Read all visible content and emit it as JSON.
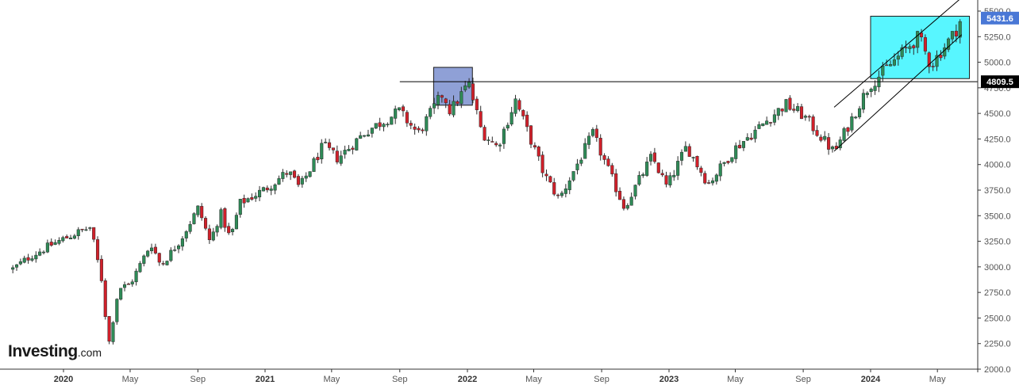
{
  "branding": {
    "logo_main": "Investing",
    "logo_suffix": ".com"
  },
  "colors": {
    "up": "#2e8b57",
    "down": "#d1202a",
    "wick": "#2b2b2b",
    "channel": "#000000",
    "resistance_line": "#000000",
    "box_2021": "#7b8fcf",
    "box_2024": "#4ff5ff",
    "current_price_tag": "#4a78d6",
    "level_tag": "#000000"
  },
  "chart_data": {
    "type": "candlestick",
    "title": "",
    "xlabel": "",
    "ylabel": "",
    "ylim": [
      2000,
      5600
    ],
    "yticks": [
      "2000.0",
      "2250.0",
      "2500.0",
      "2750.0",
      "3000.0",
      "3250.0",
      "3500.0",
      "3750.0",
      "4000.0",
      "4250.0",
      "4500.0",
      "4750.0",
      "5000.0",
      "5250.0",
      "5500.0"
    ],
    "xticks": [
      {
        "label": "2020",
        "bold": true,
        "date": "2020-01-01"
      },
      {
        "label": "May",
        "bold": false,
        "date": "2020-05-01"
      },
      {
        "label": "Sep",
        "bold": false,
        "date": "2020-09-01"
      },
      {
        "label": "2021",
        "bold": true,
        "date": "2021-01-01"
      },
      {
        "label": "May",
        "bold": false,
        "date": "2021-05-01"
      },
      {
        "label": "Sep",
        "bold": false,
        "date": "2021-09-01"
      },
      {
        "label": "2022",
        "bold": true,
        "date": "2022-01-01"
      },
      {
        "label": "May",
        "bold": false,
        "date": "2022-05-01"
      },
      {
        "label": "Sep",
        "bold": false,
        "date": "2022-09-01"
      },
      {
        "label": "2023",
        "bold": true,
        "date": "2023-01-01"
      },
      {
        "label": "May",
        "bold": false,
        "date": "2023-05-01"
      },
      {
        "label": "Sep",
        "bold": false,
        "date": "2023-09-01"
      },
      {
        "label": "2024",
        "bold": true,
        "date": "2024-01-01"
      },
      {
        "label": "May",
        "bold": false,
        "date": "2024-05-01"
      }
    ],
    "close_path": [
      [
        "2019-10-01",
        2980
      ],
      [
        "2019-11-01",
        3100
      ],
      [
        "2019-12-15",
        3230
      ],
      [
        "2020-01-20",
        3320
      ],
      [
        "2020-02-19",
        3386
      ],
      [
        "2020-03-10",
        2880
      ],
      [
        "2020-03-23",
        2237
      ],
      [
        "2020-04-10",
        2790
      ],
      [
        "2020-05-01",
        2830
      ],
      [
        "2020-06-08",
        3230
      ],
      [
        "2020-06-26",
        3010
      ],
      [
        "2020-08-01",
        3270
      ],
      [
        "2020-09-02",
        3580
      ],
      [
        "2020-09-23",
        3240
      ],
      [
        "2020-10-12",
        3530
      ],
      [
        "2020-10-30",
        3270
      ],
      [
        "2020-11-16",
        3620
      ],
      [
        "2020-12-31",
        3756
      ],
      [
        "2021-02-12",
        3934
      ],
      [
        "2021-03-04",
        3770
      ],
      [
        "2021-04-16",
        4185
      ],
      [
        "2021-05-12",
        4060
      ],
      [
        "2021-07-01",
        4320
      ],
      [
        "2021-08-31",
        4520
      ],
      [
        "2021-10-04",
        4300
      ],
      [
        "2021-11-18",
        4700
      ],
      [
        "2021-12-01",
        4520
      ],
      [
        "2022-01-03",
        4796
      ],
      [
        "2022-01-27",
        4320
      ],
      [
        "2022-02-24",
        4170
      ],
      [
        "2022-03-29",
        4630
      ],
      [
        "2022-05-20",
        3900
      ],
      [
        "2022-06-16",
        3660
      ],
      [
        "2022-08-16",
        4300
      ],
      [
        "2022-10-12",
        3580
      ],
      [
        "2022-12-01",
        4080
      ],
      [
        "2022-12-28",
        3780
      ],
      [
        "2023-02-02",
        4180
      ],
      [
        "2023-03-13",
        3810
      ],
      [
        "2023-05-01",
        4160
      ],
      [
        "2023-07-31",
        4590
      ],
      [
        "2023-09-01",
        4480
      ],
      [
        "2023-10-27",
        4117
      ],
      [
        "2023-12-29",
        4770
      ],
      [
        "2024-03-28",
        5250
      ],
      [
        "2024-04-19",
        4970
      ],
      [
        "2024-05-31",
        5280
      ],
      [
        "2024-06-14",
        5432
      ]
    ],
    "horizontal_level": {
      "value": 4809.5,
      "label": "4809.5",
      "from": "2021-09-01"
    },
    "current_price": {
      "value": 5431.6,
      "label": "5431.6"
    },
    "channel": {
      "lower": [
        [
          "2023-10-27",
          4130
        ],
        [
          "2024-06-14",
          5270
        ]
      ],
      "upper": [
        [
          "2023-10-27",
          4560
        ],
        [
          "2024-06-20",
          5660
        ]
      ]
    },
    "boxes": [
      {
        "name": "box-2021-top",
        "from": "2021-11-01",
        "to": "2022-01-10",
        "low": 4580,
        "high": 4950,
        "color": "#7b8fcf"
      },
      {
        "name": "box-2024-channel",
        "from": "2024-01-01",
        "to": "2024-06-28",
        "low": 4840,
        "high": 5450,
        "color": "#4ff5ff"
      }
    ],
    "x_range": [
      "2019-10-01",
      "2024-07-05"
    ],
    "candle_interval_days": 7,
    "grid": false,
    "legend": "none"
  }
}
